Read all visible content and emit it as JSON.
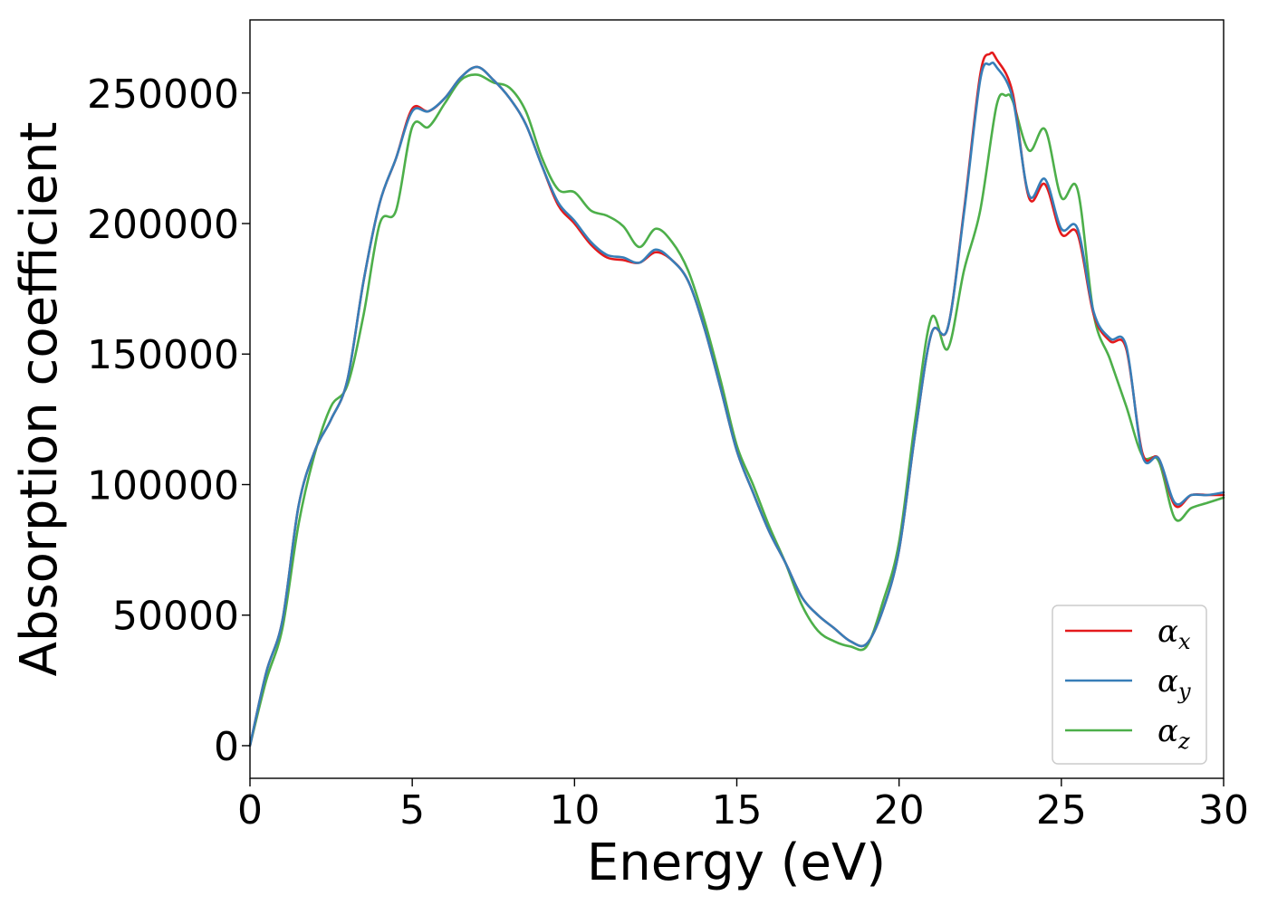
{
  "chart_data": {
    "type": "line",
    "title": "",
    "xlabel": "Energy (eV)",
    "ylabel": "Absorption coefficient",
    "xlim": [
      0,
      30
    ],
    "ylim": [
      -12500,
      278000
    ],
    "xticks": [
      0,
      5,
      10,
      15,
      20,
      25,
      30
    ],
    "xtick_labels": [
      "0",
      "5",
      "10",
      "15",
      "20",
      "25",
      "30"
    ],
    "yticks": [
      0,
      50000,
      100000,
      150000,
      200000,
      250000
    ],
    "ytick_labels": [
      "0",
      "50000",
      "100000",
      "150000",
      "200000",
      "250000"
    ],
    "grid": false,
    "legend_position": "lower-right",
    "series": [
      {
        "name": "α_x",
        "symbol": "α",
        "subscript": "x",
        "color": "#e41a1c",
        "x": [
          0,
          0.5,
          1,
          1.5,
          2,
          2.5,
          3,
          3.5,
          4,
          4.5,
          5,
          5.5,
          6,
          6.5,
          7,
          7.5,
          8,
          8.5,
          9,
          9.5,
          10,
          10.5,
          11,
          11.5,
          12,
          12.5,
          13,
          13.5,
          14,
          14.5,
          15,
          15.5,
          16,
          16.5,
          17,
          17.5,
          18,
          18.5,
          19,
          19.5,
          20,
          20.5,
          21,
          21.5,
          22,
          22.5,
          22.8,
          23,
          23.5,
          24,
          24.5,
          25,
          25.5,
          26,
          26.5,
          27,
          27.5,
          28,
          28.5,
          29,
          29.5,
          30
        ],
        "y": [
          0,
          28000,
          48000,
          92000,
          113000,
          125000,
          140000,
          178000,
          208000,
          225000,
          244000,
          243000,
          248000,
          256000,
          260000,
          255000,
          248000,
          238000,
          222000,
          207000,
          200000,
          192000,
          187000,
          186000,
          185000,
          189000,
          186000,
          178000,
          160000,
          137000,
          113000,
          97000,
          82000,
          70000,
          57000,
          50000,
          45000,
          40000,
          39000,
          52000,
          75000,
          120000,
          158000,
          160000,
          205000,
          257000,
          265000,
          263000,
          250000,
          210000,
          215000,
          196000,
          196000,
          165000,
          155000,
          152000,
          112000,
          110000,
          92000,
          96000,
          96000,
          96000
        ]
      },
      {
        "name": "α_y",
        "symbol": "α",
        "subscript": "y",
        "color": "#377eb8",
        "x": [
          0,
          0.5,
          1,
          1.5,
          2,
          2.5,
          3,
          3.5,
          4,
          4.5,
          5,
          5.5,
          6,
          6.5,
          7,
          7.5,
          8,
          8.5,
          9,
          9.5,
          10,
          10.5,
          11,
          11.5,
          12,
          12.5,
          13,
          13.5,
          14,
          14.5,
          15,
          15.5,
          16,
          16.5,
          17,
          17.5,
          18,
          18.5,
          19,
          19.5,
          20,
          20.5,
          21,
          21.5,
          22,
          22.5,
          22.8,
          23,
          23.5,
          24,
          24.5,
          25,
          25.5,
          26,
          26.5,
          27,
          27.5,
          28,
          28.5,
          29,
          29.5,
          30
        ],
        "y": [
          0,
          28000,
          48000,
          92000,
          113000,
          125000,
          140000,
          178000,
          208000,
          225000,
          243000,
          243000,
          248000,
          256000,
          260000,
          255000,
          248000,
          238000,
          222000,
          208000,
          201000,
          193000,
          188000,
          187000,
          185000,
          190000,
          186000,
          178000,
          160000,
          137000,
          113000,
          97000,
          82000,
          70000,
          57000,
          50000,
          45000,
          40000,
          39000,
          52000,
          75000,
          120000,
          158000,
          160000,
          204000,
          255000,
          261000,
          260000,
          248000,
          211000,
          217000,
          198000,
          198000,
          166000,
          156000,
          153000,
          111000,
          110000,
          93000,
          96000,
          96000,
          97000
        ]
      },
      {
        "name": "α_z",
        "symbol": "α",
        "subscript": "z",
        "color": "#4daf4a",
        "x": [
          0,
          0.5,
          1,
          1.5,
          2,
          2.5,
          3,
          3.5,
          4,
          4.5,
          5,
          5.5,
          6,
          6.5,
          7,
          7.5,
          8,
          8.5,
          9,
          9.5,
          10,
          10.5,
          11,
          11.5,
          12,
          12.5,
          13,
          13.5,
          14,
          14.5,
          15,
          15.5,
          16,
          16.5,
          17,
          17.5,
          18,
          18.5,
          19,
          19.5,
          20,
          20.5,
          21,
          21.5,
          22,
          22.5,
          23,
          23.3,
          23.5,
          24,
          24.5,
          25,
          25.5,
          26,
          26.5,
          27,
          27.5,
          28,
          28.5,
          29,
          29.5,
          30
        ],
        "y": [
          0,
          25000,
          45000,
          85000,
          112000,
          130000,
          138000,
          165000,
          200000,
          205000,
          237000,
          237000,
          246000,
          255000,
          257000,
          254000,
          252000,
          243000,
          225000,
          213000,
          212000,
          205000,
          203000,
          199000,
          191000,
          198000,
          193000,
          182000,
          163000,
          140000,
          115000,
          100000,
          84000,
          70000,
          54000,
          44000,
          40000,
          38000,
          38000,
          55000,
          78000,
          125000,
          164000,
          152000,
          182000,
          205000,
          245000,
          249000,
          247000,
          228000,
          236000,
          210000,
          213000,
          165000,
          148000,
          130000,
          111000,
          109000,
          87000,
          91000,
          93000,
          95000
        ]
      }
    ]
  }
}
